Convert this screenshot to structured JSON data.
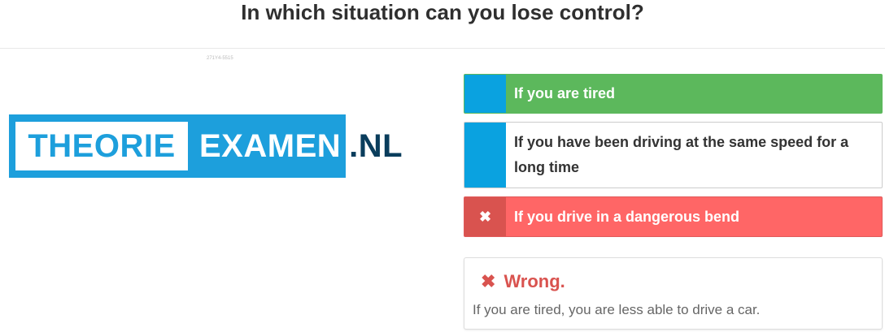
{
  "question": {
    "title": "In which situation can you lose control?"
  },
  "tiny_id": "271Y4-5515",
  "logo": {
    "part1": "THEORIE",
    "part2": "EXAMEN",
    "tld": ".NL"
  },
  "answers": [
    {
      "label": "If you are tired",
      "state": "correct",
      "marker": ""
    },
    {
      "label": "If you have been driving at the same speed for a long time",
      "state": "neutral",
      "marker": ""
    },
    {
      "label": "If you drive in a dangerous bend",
      "state": "wrong-selected",
      "marker": "✖"
    }
  ],
  "feedback": {
    "icon": "✖",
    "heading": "Wrong.",
    "explanation": "If you are tired, you are less able to drive a car."
  },
  "colors": {
    "correct": "#5cb85c",
    "wrong": "#ff6666",
    "marker_blue": "#0aa2e0",
    "logo_blue": "#1d9fdc",
    "logo_dark": "#0a3d5c"
  }
}
